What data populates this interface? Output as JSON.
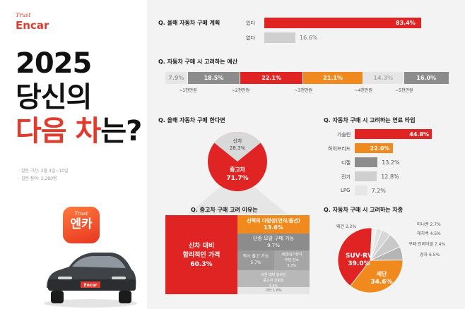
{
  "brand": {
    "tagline": "Trust",
    "name": "Encar"
  },
  "headline": {
    "line1": "2025",
    "line2": "당신의",
    "line3_red": "다음 차",
    "line3_rest": "는?"
  },
  "survey": {
    "period": "· 설문 기간: 2월 4일~10일",
    "participants": "· 설문 참여: 2,280명"
  },
  "app_icon": {
    "tagline": "Trust",
    "name": "엔카"
  },
  "car": {
    "plate": "Encar"
  },
  "colors": {
    "red": "#e02424",
    "orange": "#f08a1e",
    "gray": "#8c8c8c",
    "light_gray": "#cfcfcf",
    "pale_gray": "#e6e6e6"
  },
  "chart_data": [
    {
      "type": "bar",
      "title": "Q. 올해 자동차 구매 계획",
      "categories": [
        "있다",
        "없다"
      ],
      "values": [
        83.4,
        16.6
      ],
      "value_labels": [
        "83.4%",
        "16.6%"
      ],
      "ylim": [
        0,
        100
      ]
    },
    {
      "type": "bar",
      "title": "Q. 자동차 구매 시 고려하는 예산",
      "stacked": true,
      "values": [
        7.9,
        18.5,
        22.1,
        21.1,
        14.3,
        16.0
      ],
      "value_labels": [
        "7.9%",
        "18.5%",
        "22.1%",
        "21.1%",
        "14.3%",
        "16.0%"
      ],
      "boundary_labels": [
        "~1천만원",
        "~2천만원",
        "~3천만원",
        "~4천만원",
        "~5천만원"
      ]
    },
    {
      "type": "pie",
      "title": "Q. 올해 자동차 구매 한다면",
      "categories": [
        "신차",
        "중고차"
      ],
      "values": [
        28.3,
        71.7
      ],
      "value_labels": [
        "28.3%",
        "71.7%"
      ]
    },
    {
      "type": "bar",
      "title": "Q. 자동차 구매 시 고려하는 연료 타입",
      "categories": [
        "가솔린",
        "하이브리드",
        "디젤",
        "전기",
        "LPG"
      ],
      "values": [
        44.8,
        22.0,
        13.2,
        12.8,
        7.2
      ],
      "value_labels": [
        "44.8%",
        "22.0%",
        "13.2%",
        "12.8%",
        "7.2%"
      ],
      "xlim": [
        0,
        50
      ]
    },
    {
      "type": "heatmap",
      "title": "Q. 중고차 구매 고려 이유는",
      "categories": [
        "신차 대비 합리적인 가격",
        "선택의 다양성(연식/옵션)",
        "단종 모델 구매 가능",
        "즉시 출고 가능",
        "세금/감가상각 부담 감소",
        "이전 대비 높아진 중고차 신뢰성",
        "기타"
      ],
      "values": [
        60.3,
        13.6,
        9.7,
        5.7,
        5.3,
        3.8,
        1.6
      ],
      "value_labels": [
        "60.3%",
        "13.6%",
        "9.7%",
        "5.7%",
        "5.3%",
        "3.8%",
        "1.6%"
      ],
      "texts": [
        {
          "name": "신차 대비\n합리적인 가격",
          "pct": "60.3%"
        },
        {
          "name": "선택의 다양성(연식/옵션)",
          "pct": "13.6%"
        },
        {
          "name": "단종 모델 구매 가능",
          "pct": "9.7%"
        },
        {
          "name": "즉시 출고 가능",
          "pct": "5.7%"
        },
        {
          "name": "세금/감가상각\n부담 감소",
          "pct": "5.3%"
        },
        {
          "name": "이전 대비 높아진\n중고차 신뢰성",
          "pct": "3.8%"
        },
        {
          "name": "기타",
          "pct": "1.6%"
        }
      ]
    },
    {
      "type": "pie",
      "title": "Q. 자동차 구매 시 고려하는 차종",
      "categories": [
        "SUV·RV",
        "세단",
        "경차",
        "쿠페·컨버터블",
        "해치백",
        "미니밴",
        "왜건"
      ],
      "values": [
        39.0,
        34.6,
        6.5,
        7.4,
        4.5,
        2.7,
        2.2
      ],
      "value_labels": [
        "39.0%",
        "34.6%",
        "6.5%",
        "7.4%",
        "4.5%",
        "2.7%",
        "2.2%"
      ],
      "small_labels": [
        "왜건 2.2%",
        "미니밴 2.7%",
        "해치백 4.5%",
        "쿠페·컨버터블 7.4%",
        "경차 6.5%"
      ]
    }
  ]
}
